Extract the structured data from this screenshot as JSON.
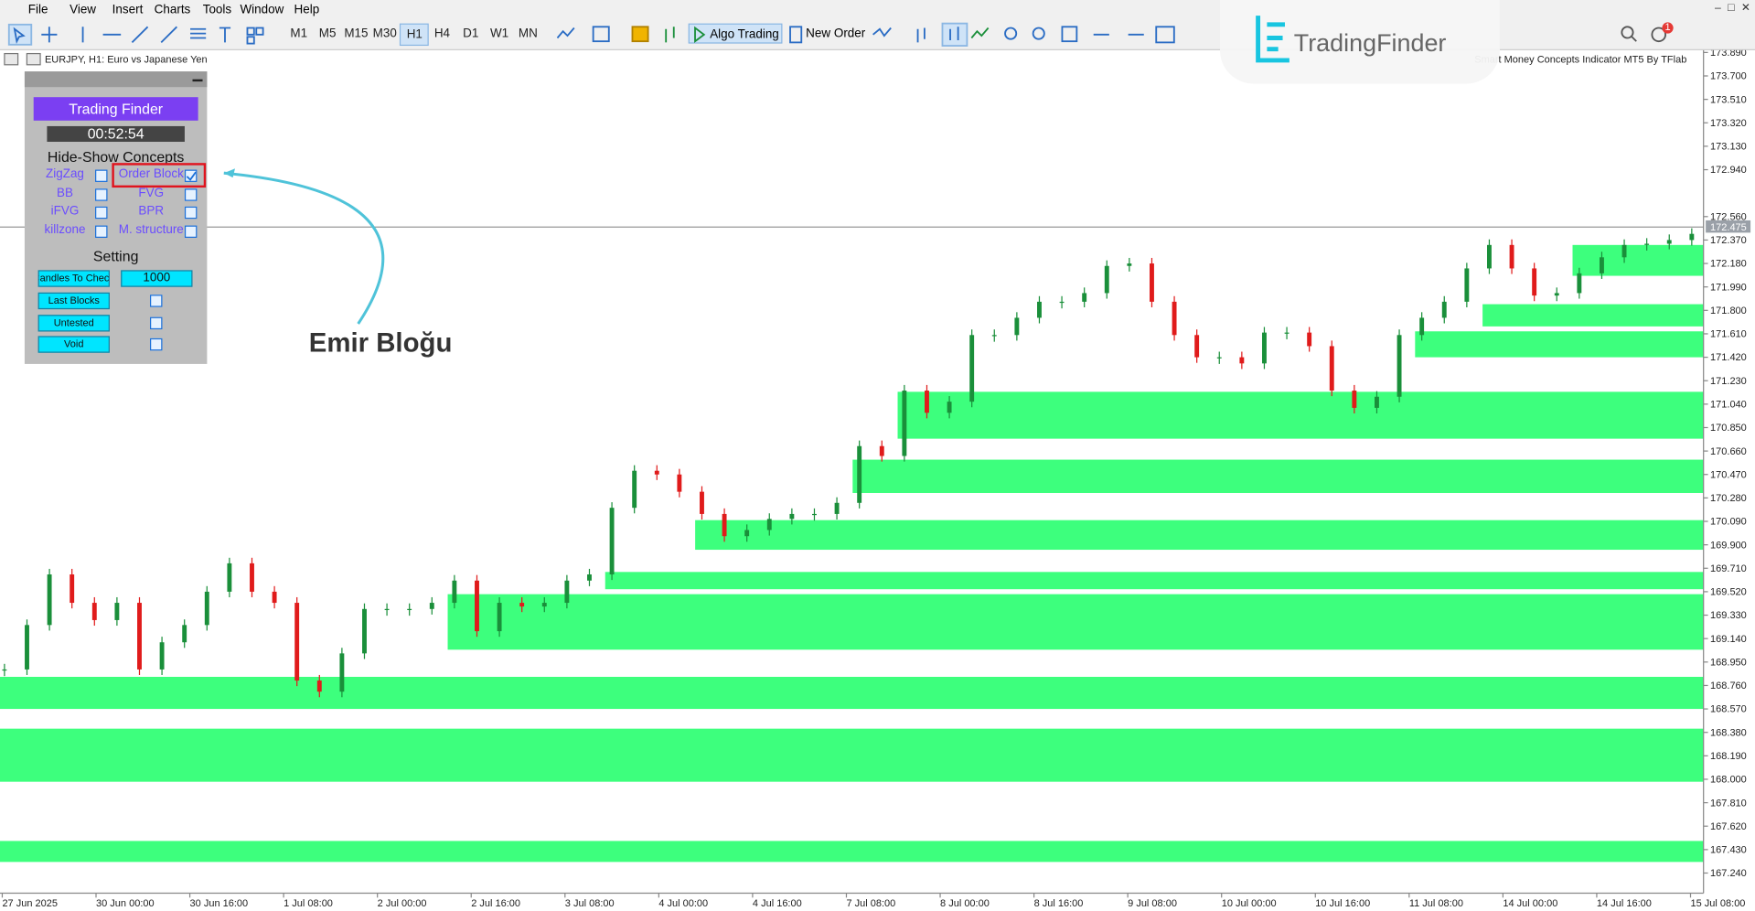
{
  "menu": [
    "File",
    "View",
    "Insert",
    "Charts",
    "Tools",
    "Window",
    "Help"
  ],
  "toolbar": {
    "timeframes": [
      "M1",
      "M5",
      "M15",
      "M30",
      "H1",
      "H4",
      "D1",
      "W1",
      "MN"
    ],
    "algo_trading": "Algo Trading",
    "new_order": "New Order",
    "badge": "1"
  },
  "logo": "TradingFinder",
  "chart": {
    "symbol_info": "EURJPY, H1:  Euro vs Japanese Yen",
    "indicator": "Smart Money Concepts Indicator MT5 By TFlab",
    "price_labels": [
      "173.890",
      "173.700",
      "173.510",
      "173.320",
      "173.130",
      "172.940",
      "172.560",
      "172.370",
      "172.180",
      "171.990",
      "171.800",
      "171.610",
      "171.420",
      "171.230",
      "171.040",
      "170.850",
      "170.660",
      "170.470",
      "170.280",
      "170.090",
      "169.900",
      "169.710",
      "169.520",
      "169.330",
      "169.140",
      "168.950",
      "168.760",
      "168.570",
      "168.380",
      "168.190",
      "168.000",
      "167.810",
      "167.620",
      "167.430",
      "167.240"
    ],
    "bid": 172.475,
    "time_labels": [
      "27 Jun 2025",
      "30 Jun 00:00",
      "30 Jun 16:00",
      "1 Jul 08:00",
      "2 Jul 00:00",
      "2 Jul 16:00",
      "3 Jul 08:00",
      "4 Jul 00:00",
      "4 Jul 16:00",
      "7 Jul 08:00",
      "8 Jul 00:00",
      "8 Jul 16:00",
      "9 Jul 08:00",
      "10 Jul 00:00",
      "10 Jul 16:00",
      "11 Jul 08:00",
      "14 Jul 00:00",
      "14 Jul 16:00",
      "15 Jul 08:00"
    ],
    "closes": [
      168.89,
      169.25,
      169.66,
      169.43,
      169.29,
      169.43,
      168.89,
      169.11,
      169.25,
      169.52,
      169.75,
      169.52,
      169.43,
      168.8,
      168.71,
      169.02,
      169.38,
      169.38,
      169.38,
      169.43,
      169.61,
      169.2,
      169.43,
      169.4,
      169.43,
      169.61,
      169.66,
      170.2,
      170.5,
      170.47,
      170.33,
      170.15,
      169.97,
      170.02,
      170.11,
      170.15,
      170.15,
      170.24,
      170.7,
      170.62,
      171.15,
      170.97,
      171.06,
      171.6,
      171.6,
      171.74,
      171.87,
      171.87,
      171.94,
      172.16,
      172.18,
      171.87,
      171.6,
      171.42,
      171.42,
      171.37,
      171.62,
      171.62,
      171.51,
      171.15,
      171.01,
      171.1,
      171.6,
      171.74,
      171.87,
      172.14,
      172.33,
      172.14,
      171.92,
      171.94,
      172.1,
      172.23,
      172.33,
      172.34,
      172.37,
      172.42
    ],
    "order_blocks": [
      {
        "top": 172.33,
        "bottom": 172.08,
        "start_bar": 70
      },
      {
        "top": 171.85,
        "bottom": 171.67,
        "start_bar": 66
      },
      {
        "top": 171.63,
        "bottom": 171.42,
        "start_bar": 63
      },
      {
        "top": 171.14,
        "bottom": 170.76,
        "start_bar": 40
      },
      {
        "top": 170.59,
        "bottom": 170.32,
        "start_bar": 38
      },
      {
        "top": 170.1,
        "bottom": 169.86,
        "start_bar": 31
      },
      {
        "top": 169.68,
        "bottom": 169.54,
        "start_bar": 27
      },
      {
        "top": 169.5,
        "bottom": 169.05,
        "start_bar": 20
      },
      {
        "top": 168.83,
        "bottom": 168.57,
        "start_bar": 0
      },
      {
        "top": 168.41,
        "bottom": 167.98,
        "start_bar": 0
      },
      {
        "top": 167.5,
        "bottom": 167.33,
        "start_bar": 0
      }
    ]
  },
  "panel": {
    "brand": "Trading Finder",
    "timer": "00:52:54",
    "concepts_title": "Hide-Show Concepts",
    "concepts": [
      {
        "label": "ZigZag",
        "checked": false
      },
      {
        "label": "Order Block",
        "checked": true
      },
      {
        "label": "BB",
        "checked": false
      },
      {
        "label": "FVG",
        "checked": false
      },
      {
        "label": "iFVG",
        "checked": false
      },
      {
        "label": "BPR",
        "checked": false
      },
      {
        "label": "killzone",
        "checked": false
      },
      {
        "label": "M. structure",
        "checked": false
      }
    ],
    "setting_title": "Setting",
    "candles_to_check": {
      "label": "Candles To Check",
      "value": "1000"
    },
    "options": [
      "Last Blocks",
      "Untested",
      "Void"
    ]
  },
  "annotation": "Emir Bloğu"
}
